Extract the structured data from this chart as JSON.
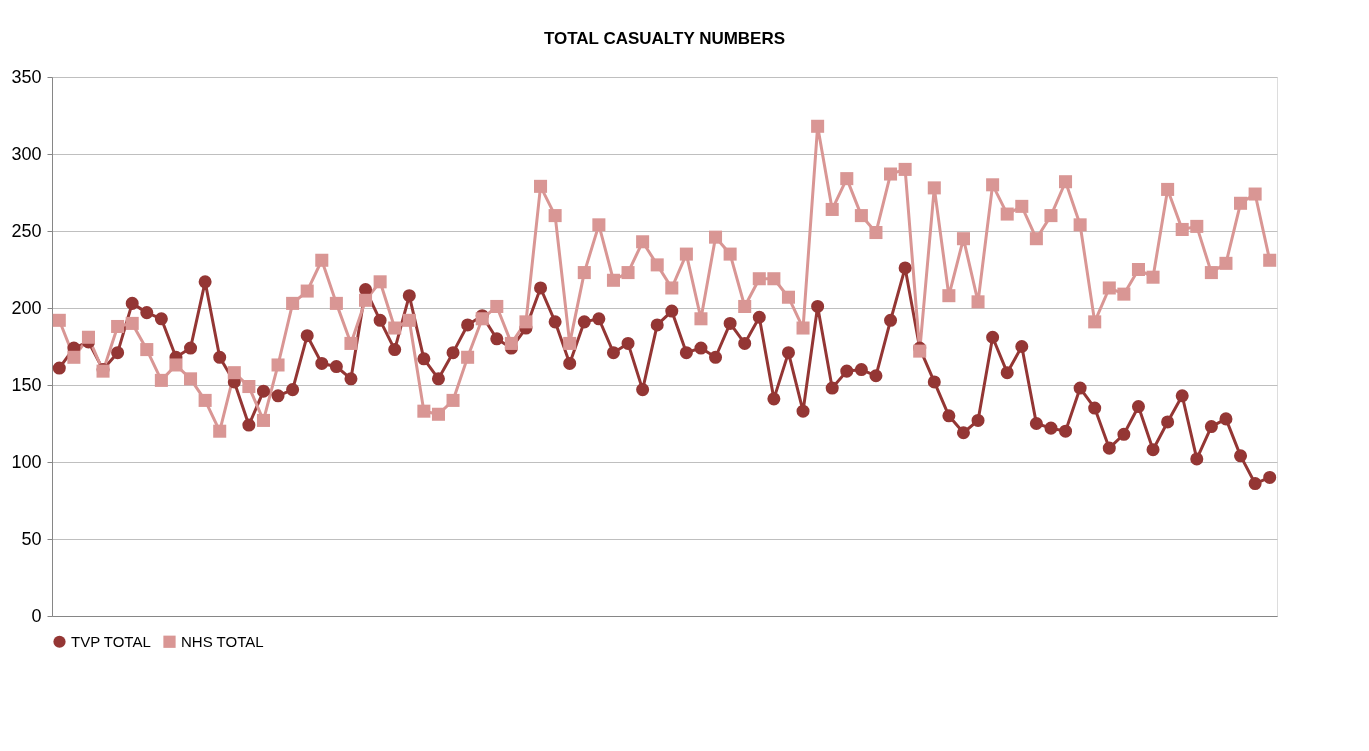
{
  "chart_data": {
    "type": "line",
    "title": "TOTAL CASUALTY NUMBERS",
    "categories": [
      null,
      null,
      null,
      null,
      null,
      null,
      null,
      null,
      null,
      null,
      null,
      null,
      null,
      null,
      null,
      null,
      null,
      null,
      null,
      null,
      null,
      null,
      null,
      null,
      null,
      null,
      null,
      null,
      null,
      null,
      null,
      null,
      null,
      null,
      null,
      null,
      null,
      null,
      null,
      null,
      null,
      null,
      null,
      null,
      null,
      null,
      null,
      null,
      null,
      null,
      null,
      null,
      null,
      null,
      null,
      null,
      null,
      null,
      null,
      null,
      null,
      null,
      null,
      null,
      null,
      null,
      null,
      null,
      null,
      null,
      null,
      null,
      null,
      null,
      null,
      null,
      null,
      null,
      null,
      null,
      null,
      null,
      null,
      null
    ],
    "series": [
      {
        "name": "TVP TOTAL",
        "color": "#943634",
        "marker": "circle",
        "values": [
          161,
          174,
          178,
          160,
          171,
          203,
          197,
          193,
          168,
          174,
          217,
          168,
          152,
          124,
          146,
          143,
          147,
          182,
          164,
          162,
          154,
          212,
          192,
          173,
          208,
          167,
          154,
          171,
          189,
          195,
          180,
          174,
          187,
          213,
          191,
          164,
          191,
          193,
          171,
          177,
          147,
          189,
          198,
          171,
          174,
          168,
          190,
          177,
          194,
          141,
          171,
          133,
          201,
          148,
          159,
          160,
          156,
          192,
          226,
          174,
          152,
          130,
          119,
          127,
          181,
          158,
          175,
          125,
          122,
          120,
          148,
          135,
          109,
          118,
          136,
          108,
          126,
          143,
          102,
          123,
          128,
          104,
          86,
          90
        ]
      },
      {
        "name": "NHS TOTAL",
        "color": "#d99694",
        "marker": "square",
        "values": [
          192,
          168,
          181,
          159,
          188,
          190,
          173,
          153,
          163,
          154,
          140,
          120,
          158,
          149,
          127,
          163,
          203,
          211,
          231,
          203,
          177,
          205,
          217,
          187,
          192,
          133,
          131,
          140,
          168,
          193,
          201,
          177,
          191,
          279,
          260,
          177,
          223,
          254,
          218,
          223,
          243,
          228,
          213,
          235,
          193,
          246,
          235,
          201,
          219,
          219,
          207,
          187,
          318,
          264,
          284,
          260,
          249,
          287,
          290,
          172,
          278,
          208,
          245,
          204,
          280,
          261,
          266,
          245,
          260,
          282,
          254,
          191,
          213,
          209,
          225,
          220,
          277,
          251,
          253,
          223,
          229,
          268,
          274,
          231
        ]
      }
    ],
    "ylim": [
      0,
      350
    ],
    "yticks": [
      0,
      50,
      100,
      150,
      200,
      250,
      300,
      350
    ],
    "grid": "y",
    "legend": "bottom",
    "line_style": "solid",
    "tick_labels": "y"
  }
}
